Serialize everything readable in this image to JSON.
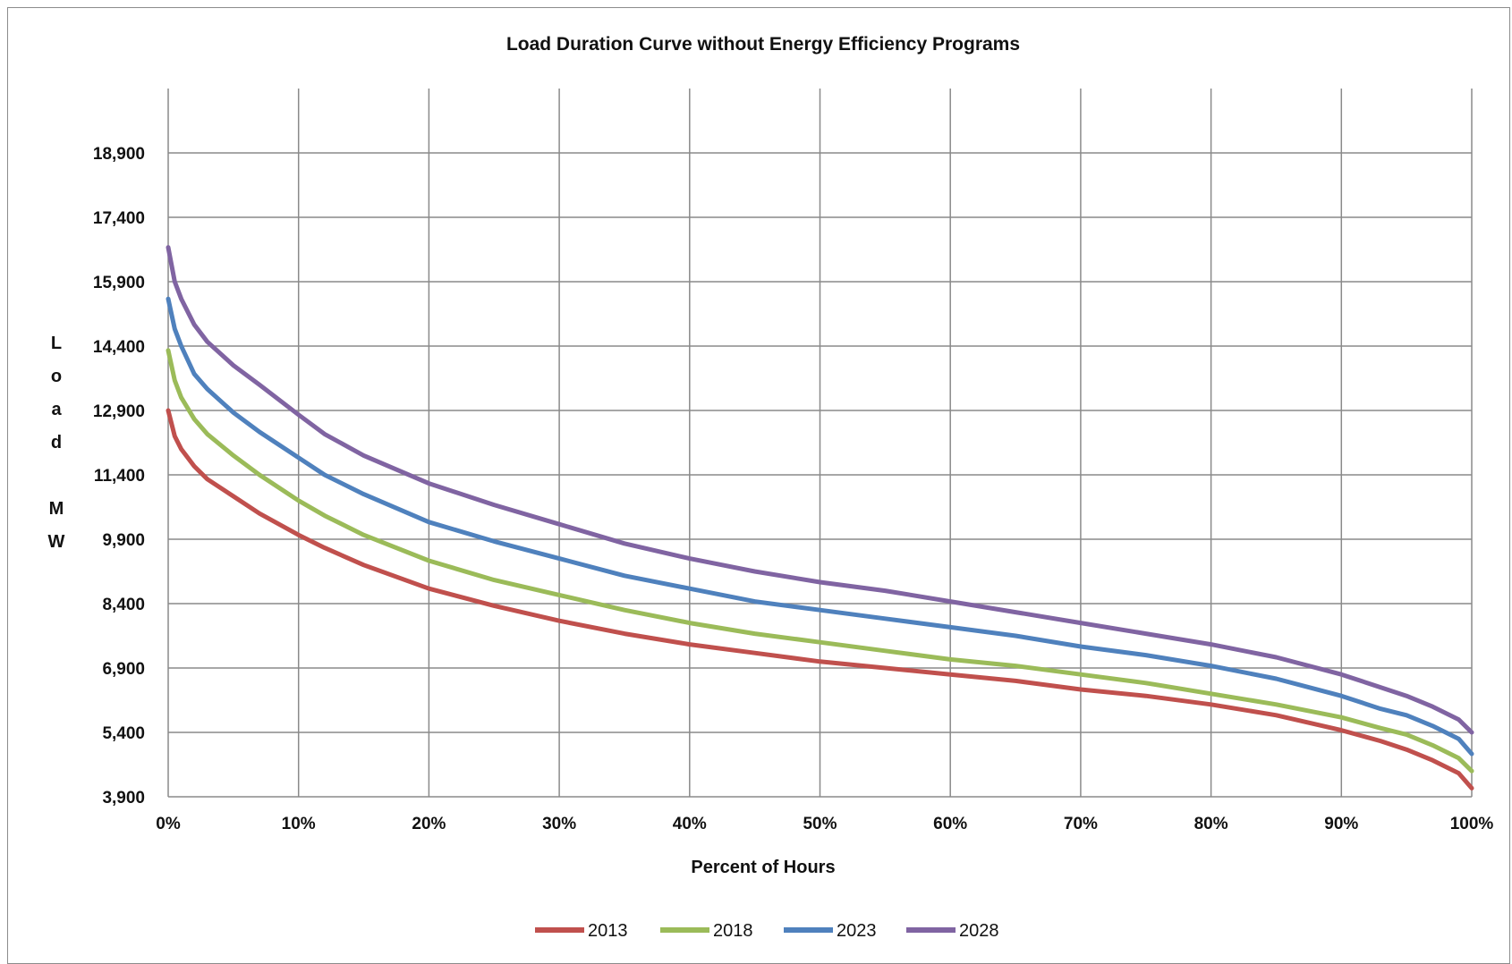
{
  "chart_data": {
    "type": "line",
    "title": "Load Duration Curve without Energy Efficiency Programs",
    "xlabel": "Percent of Hours",
    "ylabel": "Load MW",
    "ylabel_letters": [
      "L",
      "o",
      "a",
      "d",
      "",
      "M",
      "W"
    ],
    "xlim": [
      0,
      100
    ],
    "ylim": [
      3900,
      20400
    ],
    "y_ticks": [
      3900,
      5400,
      6900,
      8400,
      9900,
      11400,
      12900,
      14400,
      15900,
      17400,
      18900
    ],
    "y_tick_labels": [
      "3,900",
      "5,400",
      "6,900",
      "8,400",
      "9,900",
      "11,400",
      "12,900",
      "14,400",
      "15,900",
      "17,400",
      "18,900"
    ],
    "x_ticks": [
      0,
      10,
      20,
      30,
      40,
      50,
      60,
      70,
      80,
      90,
      100
    ],
    "x_tick_labels": [
      "0%",
      "10%",
      "20%",
      "30%",
      "40%",
      "50%",
      "60%",
      "70%",
      "80%",
      "90%",
      "100%"
    ],
    "grid": true,
    "legend_position": "bottom",
    "x": [
      0,
      0.5,
      1,
      2,
      3,
      5,
      7,
      10,
      12,
      15,
      20,
      25,
      30,
      35,
      40,
      45,
      50,
      55,
      60,
      65,
      70,
      75,
      80,
      85,
      90,
      93,
      95,
      97,
      99,
      100
    ],
    "series": [
      {
        "name": "2013",
        "color": "#c0504d",
        "values": [
          12900,
          12300,
          12000,
          11600,
          11300,
          10900,
          10500,
          10000,
          9700,
          9300,
          8750,
          8350,
          8000,
          7700,
          7450,
          7250,
          7050,
          6900,
          6750,
          6600,
          6400,
          6250,
          6050,
          5800,
          5450,
          5200,
          5000,
          4750,
          4450,
          4100
        ]
      },
      {
        "name": "2018",
        "color": "#9bbb59",
        "values": [
          14300,
          13600,
          13200,
          12700,
          12350,
          11850,
          11400,
          10800,
          10450,
          10000,
          9400,
          8950,
          8600,
          8250,
          7950,
          7700,
          7500,
          7300,
          7100,
          6950,
          6750,
          6550,
          6300,
          6050,
          5750,
          5500,
          5350,
          5100,
          4800,
          4500
        ]
      },
      {
        "name": "2023",
        "color": "#4f81bd",
        "values": [
          15500,
          14800,
          14400,
          13750,
          13400,
          12850,
          12400,
          11800,
          11400,
          10950,
          10300,
          9850,
          9450,
          9050,
          8750,
          8450,
          8250,
          8050,
          7850,
          7650,
          7400,
          7200,
          6950,
          6650,
          6250,
          5950,
          5800,
          5550,
          5250,
          4900
        ]
      },
      {
        "name": "2028",
        "color": "#8064a2",
        "values": [
          16700,
          15900,
          15500,
          14900,
          14500,
          13950,
          13500,
          12800,
          12350,
          11850,
          11200,
          10700,
          10250,
          9800,
          9450,
          9150,
          8900,
          8700,
          8450,
          8200,
          7950,
          7700,
          7450,
          7150,
          6750,
          6450,
          6250,
          6000,
          5700,
          5400
        ]
      }
    ]
  }
}
